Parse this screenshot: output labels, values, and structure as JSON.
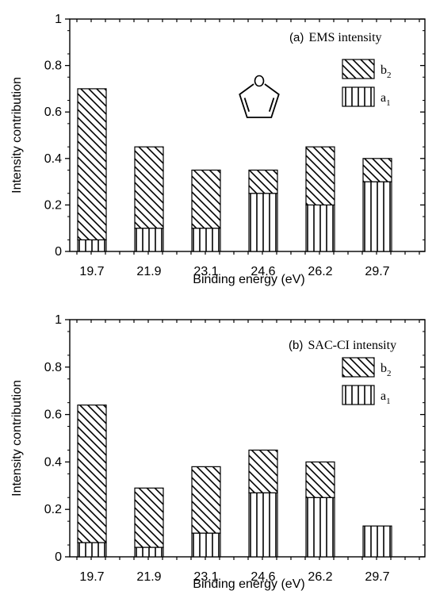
{
  "chart_data": [
    {
      "type": "bar",
      "stacked": true,
      "panel_label": "(a)",
      "title": "EMS intensity",
      "xlabel": "Binding energy (eV)",
      "ylabel": "Intensity contribution",
      "categories": [
        "19.7",
        "21.9",
        "23.1",
        "24.6",
        "26.2",
        "29.7"
      ],
      "ylim": [
        0,
        1
      ],
      "yticks": [
        "0",
        "0.2",
        "0.4",
        "0.6",
        "0.8",
        "1"
      ],
      "series": [
        {
          "name": "a1",
          "name_base": "a",
          "name_sub": "1",
          "pattern": "vertical-lines",
          "values": [
            0.05,
            0.1,
            0.1,
            0.25,
            0.2,
            0.3
          ]
        },
        {
          "name": "b2",
          "name_base": "b",
          "name_sub": "2",
          "pattern": "diagonal-lines",
          "values": [
            0.65,
            0.35,
            0.25,
            0.1,
            0.25,
            0.1
          ]
        }
      ],
      "totals": [
        0.7,
        0.45,
        0.35,
        0.35,
        0.45,
        0.4
      ],
      "legend_position": "top-right",
      "inset_image": "furan-molecule",
      "grid": false
    },
    {
      "type": "bar",
      "stacked": true,
      "panel_label": "(b)",
      "title": "SAC-CI intensity",
      "xlabel": "Binding energy (eV)",
      "ylabel": "Intensity contribution",
      "categories": [
        "19.7",
        "21.9",
        "23.1",
        "24.6",
        "26.2",
        "29.7"
      ],
      "ylim": [
        0,
        1
      ],
      "yticks": [
        "0",
        "0.2",
        "0.4",
        "0.6",
        "0.8",
        "1"
      ],
      "series": [
        {
          "name": "a1",
          "name_base": "a",
          "name_sub": "1",
          "pattern": "vertical-lines",
          "values": [
            0.06,
            0.04,
            0.1,
            0.27,
            0.25,
            0.13
          ]
        },
        {
          "name": "b2",
          "name_base": "b",
          "name_sub": "2",
          "pattern": "diagonal-lines",
          "values": [
            0.58,
            0.25,
            0.28,
            0.18,
            0.15,
            0.0
          ]
        }
      ],
      "totals": [
        0.64,
        0.29,
        0.38,
        0.45,
        0.4,
        0.13
      ],
      "legend_position": "top-right",
      "grid": false
    }
  ]
}
